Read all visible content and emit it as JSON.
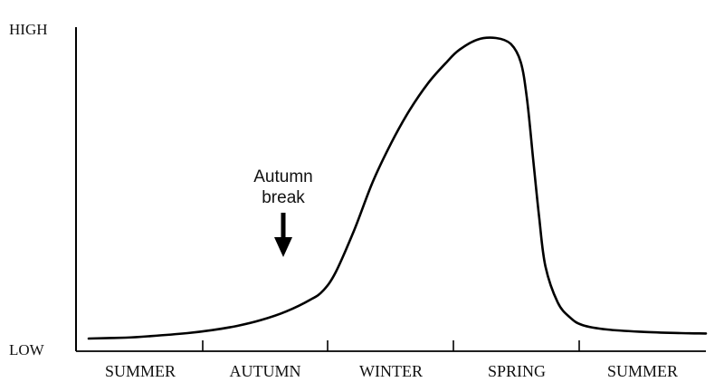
{
  "chart_data": {
    "type": "line",
    "title": "",
    "xlabel": "",
    "ylabel": "",
    "y_tick_labels": [
      "LOW",
      "HIGH"
    ],
    "y_range": [
      0,
      1
    ],
    "categories": [
      "SUMMER",
      "AUTUMN",
      "WINTER",
      "SPRING",
      "SUMMER"
    ],
    "grid": false,
    "legend": "none",
    "annotation": {
      "text_line1": "Autumn",
      "text_line2": "break",
      "points_to": "AUTUMN",
      "position_within_season": 0.62
    },
    "series": [
      {
        "x": [
          0.0,
          0.3,
          0.5,
          0.8,
          1.0,
          1.2,
          1.4,
          1.6,
          1.8,
          1.9,
          2.0,
          2.15,
          2.3,
          2.45,
          2.6,
          2.75,
          2.9,
          3.0,
          3.15,
          3.3,
          3.42,
          3.5,
          3.55,
          3.6,
          3.65,
          3.7,
          3.8,
          3.9,
          4.0,
          4.2,
          4.5,
          4.8,
          5.0
        ],
        "values": [
          0.0,
          0.003,
          0.008,
          0.018,
          0.028,
          0.042,
          0.062,
          0.09,
          0.13,
          0.16,
          0.22,
          0.36,
          0.52,
          0.65,
          0.76,
          0.85,
          0.92,
          0.96,
          0.995,
          1.0,
          0.98,
          0.92,
          0.8,
          0.6,
          0.4,
          0.24,
          0.12,
          0.07,
          0.045,
          0.03,
          0.022,
          0.018,
          0.017
        ]
      }
    ]
  },
  "colors": {
    "line": "#000000",
    "axis": "#000000",
    "text": "#111111"
  }
}
